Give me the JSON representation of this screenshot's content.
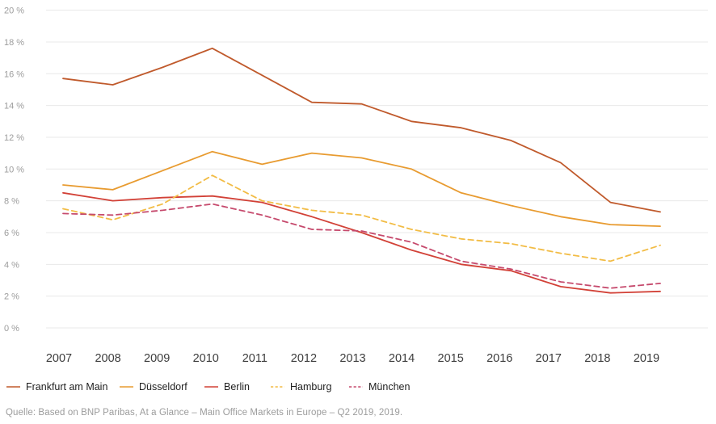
{
  "chart_data": {
    "type": "line",
    "title": "",
    "x_labels": [
      "2007",
      "2008",
      "2009",
      "2010",
      "2011",
      "2012",
      "2013",
      "2014",
      "2015",
      "2016",
      "2017",
      "2018",
      "2019"
    ],
    "y_axis": {
      "min": 0,
      "max": 20,
      "step": 2,
      "suffix": " %",
      "tick_labels": [
        "0 %",
        "2 %",
        "4 %",
        "6 %",
        "8 %",
        "10 %",
        "12 %",
        "14 %",
        "16 %",
        "18 %",
        "20 %"
      ]
    },
    "grid": "horizontal-only",
    "legend_position": "bottom-left",
    "series": [
      {
        "name": "Frankfurt am Main",
        "style": "solid",
        "color": "#c05a2c",
        "values": [
          15.7,
          15.3,
          16.4,
          17.6,
          15.9,
          14.2,
          14.1,
          13.0,
          12.6,
          11.8,
          10.4,
          7.9,
          7.3
        ]
      },
      {
        "name": "Düsseldorf",
        "style": "solid",
        "color": "#e89b30",
        "values": [
          9.0,
          8.7,
          9.9,
          11.1,
          10.3,
          11.0,
          10.7,
          10.0,
          8.5,
          7.7,
          7.0,
          6.5,
          6.4
        ]
      },
      {
        "name": "Berlin",
        "style": "solid",
        "color": "#d24137",
        "values": [
          8.5,
          8.0,
          8.2,
          8.3,
          7.9,
          7.0,
          6.0,
          4.9,
          4.0,
          3.6,
          2.6,
          2.2,
          2.3
        ]
      },
      {
        "name": "Hamburg",
        "style": "dashed",
        "color": "#f2bc45",
        "values": [
          7.5,
          6.8,
          7.8,
          9.6,
          8.0,
          7.4,
          7.1,
          6.2,
          5.6,
          5.3,
          4.7,
          4.2,
          5.2
        ]
      },
      {
        "name": "München",
        "style": "dashed",
        "color": "#c64a6d",
        "values": [
          7.2,
          7.1,
          7.4,
          7.8,
          7.1,
          6.2,
          6.1,
          5.4,
          4.2,
          3.7,
          2.9,
          2.5,
          2.8
        ]
      }
    ]
  },
  "source_note": "Quelle: Based on BNP Paribas, At a Glance – Main Office Markets in Europe – Q2 2019, 2019."
}
